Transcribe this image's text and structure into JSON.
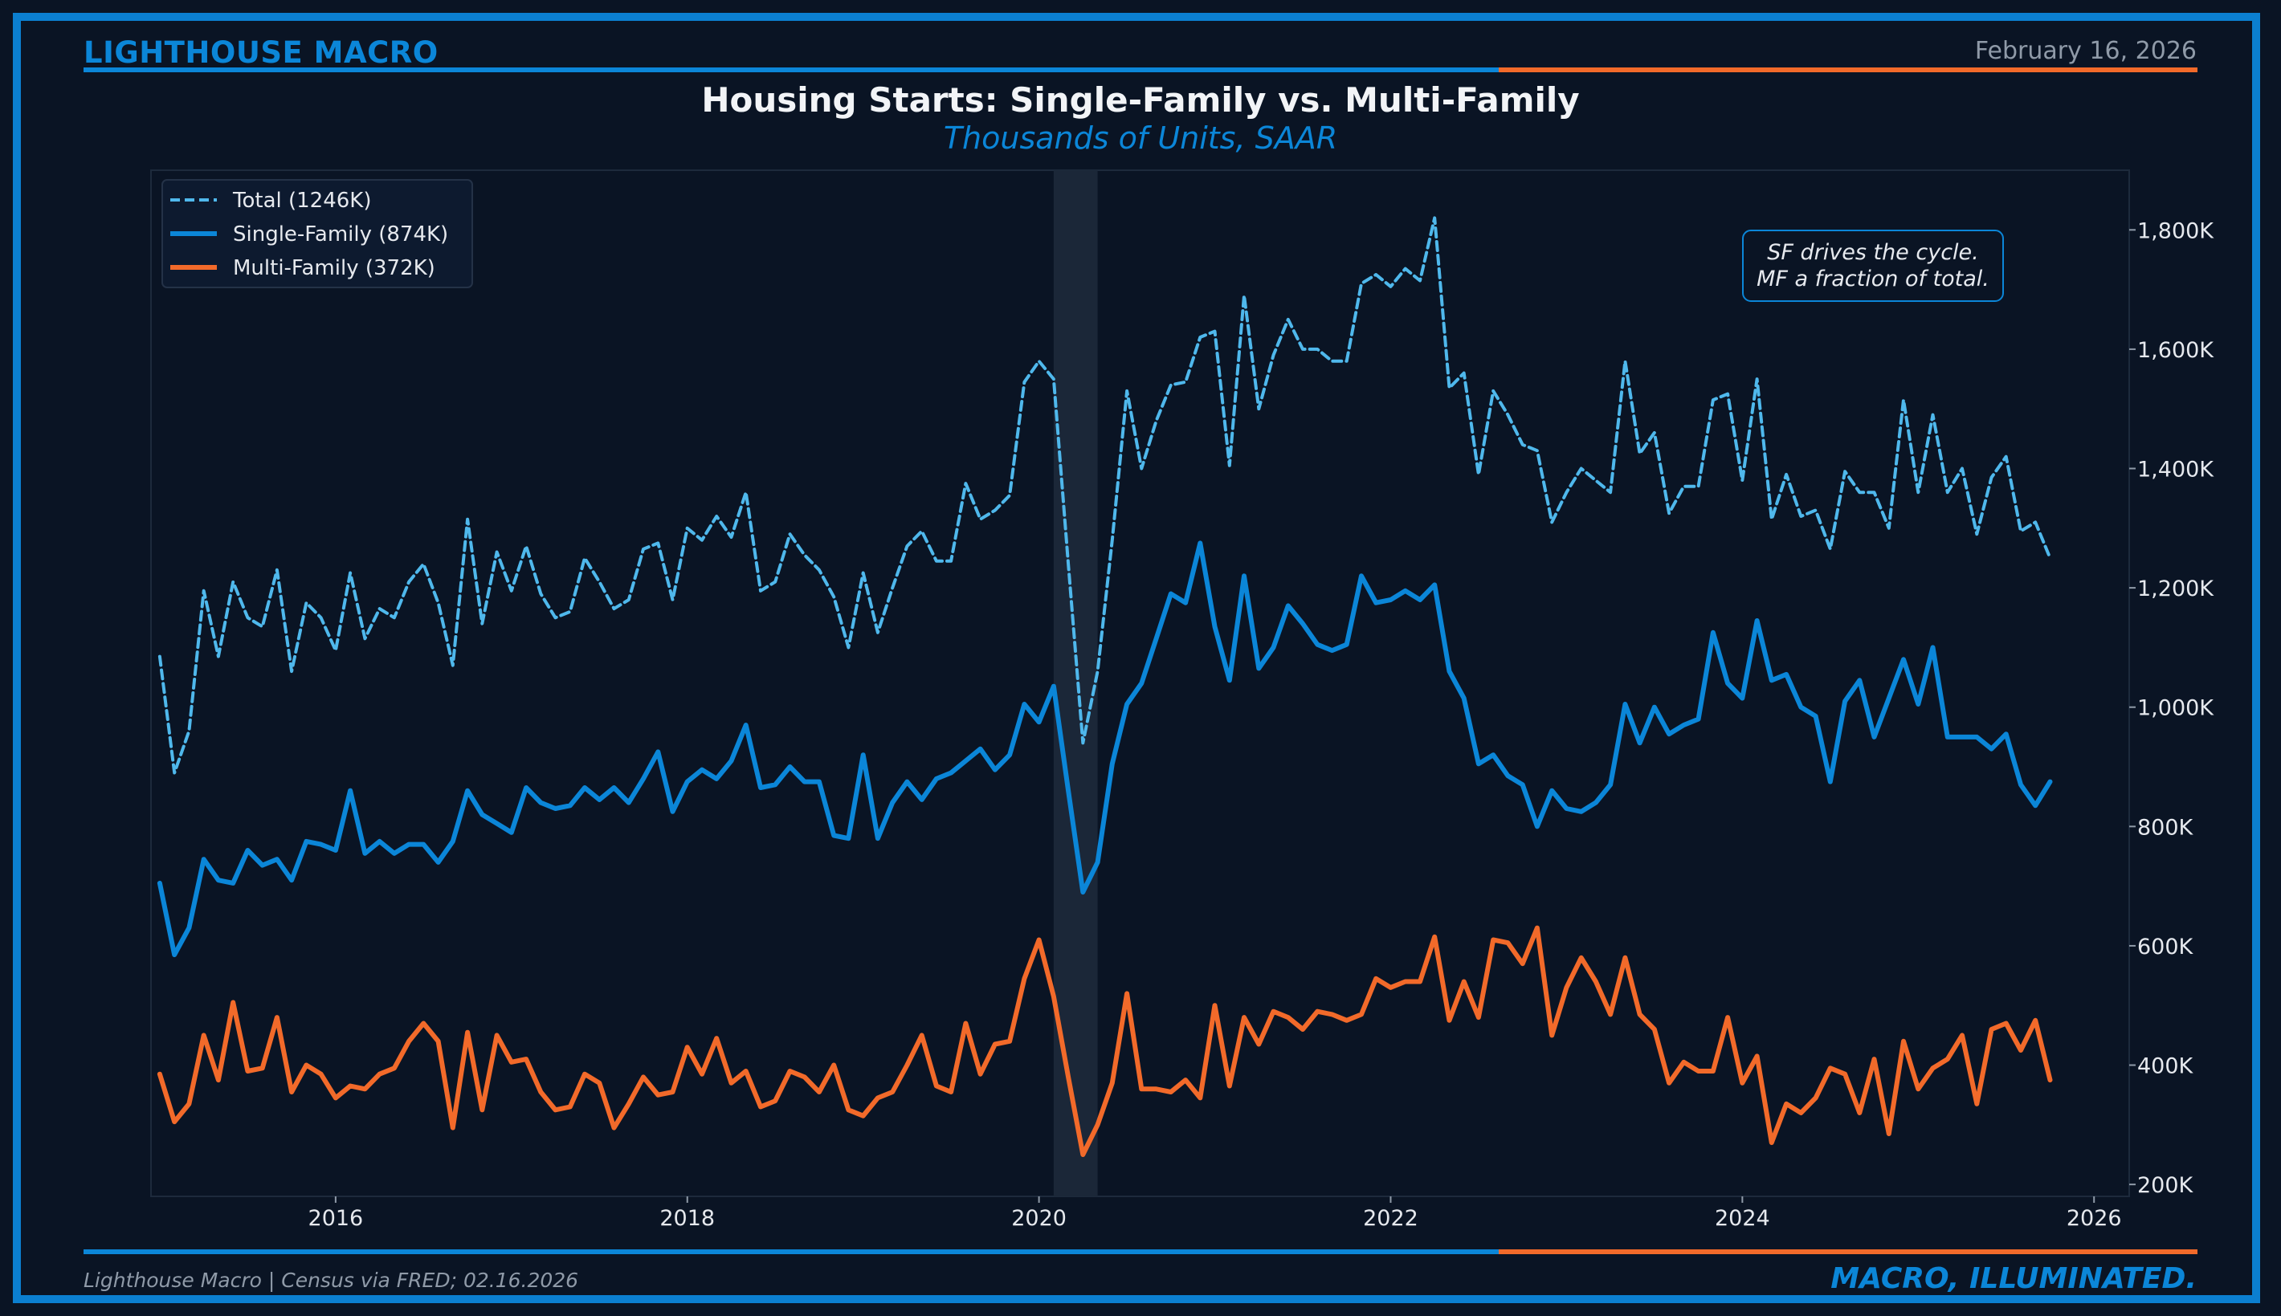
{
  "header": {
    "brand": "LIGHTHOUSE MACRO",
    "date": "February 16, 2026"
  },
  "footer": {
    "source": "Lighthouse Macro | Census via FRED; 02.16.2026",
    "tagline": "MACRO, ILLUMINATED."
  },
  "colors": {
    "background": "#0a1424",
    "accent_blue": "#0b86d8",
    "accent_orange": "#f26a2a",
    "total_line": "#4fb8ec",
    "recession_shade": "#1b2738"
  },
  "annotation": {
    "line1": "SF drives the cycle.",
    "line2": "MF a fraction of total."
  },
  "chart_data": {
    "type": "line",
    "title": "Housing Starts: Single-Family vs. Multi-Family",
    "subtitle": "Thousands of Units, SAAR",
    "x_start": "2015-01",
    "x_end": "2025-10",
    "xlim": [
      2014.95,
      2026.2
    ],
    "x_ticks": [
      {
        "value": 2016,
        "label": "2016"
      },
      {
        "value": 2018,
        "label": "2018"
      },
      {
        "value": 2020,
        "label": "2020"
      },
      {
        "value": 2022,
        "label": "2022"
      },
      {
        "value": 2024,
        "label": "2024"
      },
      {
        "value": 2026,
        "label": "2026"
      }
    ],
    "ylim": [
      180,
      1900
    ],
    "y_ticks": [
      {
        "value": 200,
        "label": "200K"
      },
      {
        "value": 400,
        "label": "400K"
      },
      {
        "value": 600,
        "label": "600K"
      },
      {
        "value": 800,
        "label": "800K"
      },
      {
        "value": 1000,
        "label": "1,000K"
      },
      {
        "value": 1200,
        "label": "1,200K"
      },
      {
        "value": 1400,
        "label": "1,400K"
      },
      {
        "value": 1600,
        "label": "1,600K"
      },
      {
        "value": 1800,
        "label": "1,800K"
      }
    ],
    "y_axis_side": "right",
    "grid": false,
    "legend_position": "top-left",
    "shaded_region": {
      "from": "2020-02",
      "to": "2020-04"
    },
    "series": [
      {
        "name": "Total (1246K)",
        "color": "#4fb8ec",
        "style": "dashed",
        "values": [
          1085,
          890,
          960,
          1195,
          1085,
          1210,
          1150,
          1135,
          1230,
          1060,
          1175,
          1150,
          1095,
          1225,
          1115,
          1165,
          1150,
          1210,
          1240,
          1175,
          1070,
          1315,
          1140,
          1260,
          1195,
          1270,
          1190,
          1150,
          1160,
          1250,
          1210,
          1165,
          1180,
          1265,
          1275,
          1180,
          1300,
          1280,
          1320,
          1285,
          1360,
          1195,
          1210,
          1290,
          1255,
          1230,
          1185,
          1100,
          1225,
          1125,
          1200,
          1270,
          1295,
          1245,
          1245,
          1375,
          1315,
          1330,
          1355,
          1545,
          1580,
          1550,
          1240,
          940,
          1060,
          1280,
          1530,
          1400,
          1480,
          1540,
          1545,
          1620,
          1630,
          1405,
          1690,
          1500,
          1590,
          1650,
          1600,
          1600,
          1580,
          1580,
          1710,
          1725,
          1705,
          1735,
          1715,
          1820,
          1535,
          1560,
          1390,
          1530,
          1490,
          1440,
          1430,
          1310,
          1360,
          1400,
          1380,
          1360,
          1580,
          1425,
          1460,
          1325,
          1370,
          1370,
          1515,
          1525,
          1380,
          1550,
          1315,
          1390,
          1320,
          1330,
          1265,
          1395,
          1360,
          1360,
          1300,
          1515,
          1360,
          1490,
          1360,
          1400,
          1290,
          1385,
          1420,
          1295,
          1310,
          1250
        ]
      },
      {
        "name": "Single-Family (874K)",
        "color": "#0b86d8",
        "style": "solid",
        "values": [
          705,
          585,
          630,
          745,
          710,
          705,
          760,
          735,
          745,
          710,
          775,
          770,
          760,
          860,
          755,
          775,
          755,
          770,
          770,
          740,
          775,
          860,
          820,
          805,
          790,
          865,
          840,
          830,
          835,
          865,
          845,
          865,
          840,
          880,
          925,
          825,
          875,
          895,
          880,
          910,
          970,
          865,
          870,
          900,
          875,
          875,
          785,
          780,
          920,
          780,
          840,
          875,
          845,
          880,
          890,
          910,
          930,
          895,
          920,
          1005,
          975,
          1035,
          860,
          690,
          740,
          905,
          1005,
          1040,
          1115,
          1190,
          1175,
          1275,
          1135,
          1045,
          1220,
          1065,
          1100,
          1170,
          1140,
          1105,
          1095,
          1105,
          1220,
          1175,
          1180,
          1195,
          1180,
          1205,
          1060,
          1015,
          905,
          920,
          885,
          870,
          800,
          860,
          830,
          825,
          840,
          870,
          1005,
          940,
          1000,
          955,
          970,
          980,
          1125,
          1040,
          1015,
          1145,
          1045,
          1055,
          1000,
          985,
          875,
          1010,
          1045,
          950,
          1015,
          1080,
          1005,
          1100,
          950,
          950,
          950,
          930,
          955,
          870,
          835,
          875
        ]
      },
      {
        "name": "Multi-Family (372K)",
        "color": "#f26a2a",
        "style": "solid",
        "values": [
          385,
          305,
          335,
          450,
          375,
          505,
          390,
          395,
          480,
          355,
          400,
          385,
          345,
          365,
          360,
          385,
          395,
          440,
          470,
          440,
          295,
          455,
          325,
          450,
          405,
          410,
          355,
          325,
          330,
          385,
          370,
          295,
          335,
          380,
          350,
          355,
          430,
          385,
          445,
          370,
          390,
          330,
          340,
          390,
          380,
          355,
          400,
          325,
          315,
          345,
          355,
          400,
          450,
          365,
          355,
          470,
          385,
          435,
          440,
          545,
          610,
          515,
          380,
          250,
          300,
          370,
          520,
          360,
          360,
          355,
          375,
          345,
          500,
          365,
          480,
          435,
          490,
          480,
          460,
          490,
          485,
          475,
          485,
          545,
          530,
          540,
          540,
          615,
          475,
          540,
          480,
          610,
          605,
          570,
          630,
          450,
          530,
          580,
          540,
          485,
          580,
          485,
          460,
          370,
          405,
          390,
          390,
          480,
          370,
          415,
          270,
          335,
          320,
          345,
          395,
          385,
          320,
          410,
          285,
          440,
          360,
          395,
          410,
          450,
          335,
          460,
          470,
          425,
          475,
          375
        ]
      }
    ]
  }
}
